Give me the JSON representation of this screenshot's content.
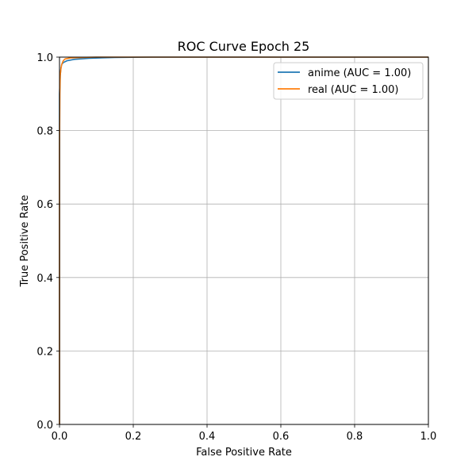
{
  "chart_data": {
    "type": "line",
    "title": "ROC Curve Epoch 25",
    "xlabel": "False Positive Rate",
    "ylabel": "True Positive Rate",
    "xlim": [
      0,
      1
    ],
    "ylim": [
      0,
      1
    ],
    "grid": true,
    "legend_position": "top-right",
    "x_ticks": [
      "0.0",
      "0.2",
      "0.4",
      "0.6",
      "0.8",
      "1.0"
    ],
    "y_ticks": [
      "0.0",
      "0.2",
      "0.4",
      "0.6",
      "0.8",
      "1.0"
    ],
    "series": [
      {
        "name": "anime (AUC = 1.00)",
        "color": "#1f77b4",
        "x": [
          0.0,
          0.0,
          0.002,
          0.004,
          0.006,
          0.01,
          0.02,
          0.04,
          0.08,
          0.15,
          0.25,
          0.5,
          1.0
        ],
        "y": [
          0.0,
          0.9,
          0.95,
          0.97,
          0.98,
          0.985,
          0.99,
          0.994,
          0.997,
          0.999,
          1.0,
          1.0,
          1.0
        ]
      },
      {
        "name": "real (AUC = 1.00)",
        "color": "#ff7f0e",
        "x": [
          0.0,
          0.0,
          0.001,
          0.002,
          0.004,
          0.006,
          0.01,
          0.015,
          0.03,
          0.06,
          0.1,
          0.2,
          0.5,
          1.0
        ],
        "y": [
          0.0,
          0.75,
          0.9,
          0.95,
          0.97,
          0.98,
          0.99,
          0.995,
          0.998,
          0.999,
          1.0,
          1.0,
          1.0,
          1.0
        ]
      }
    ]
  }
}
